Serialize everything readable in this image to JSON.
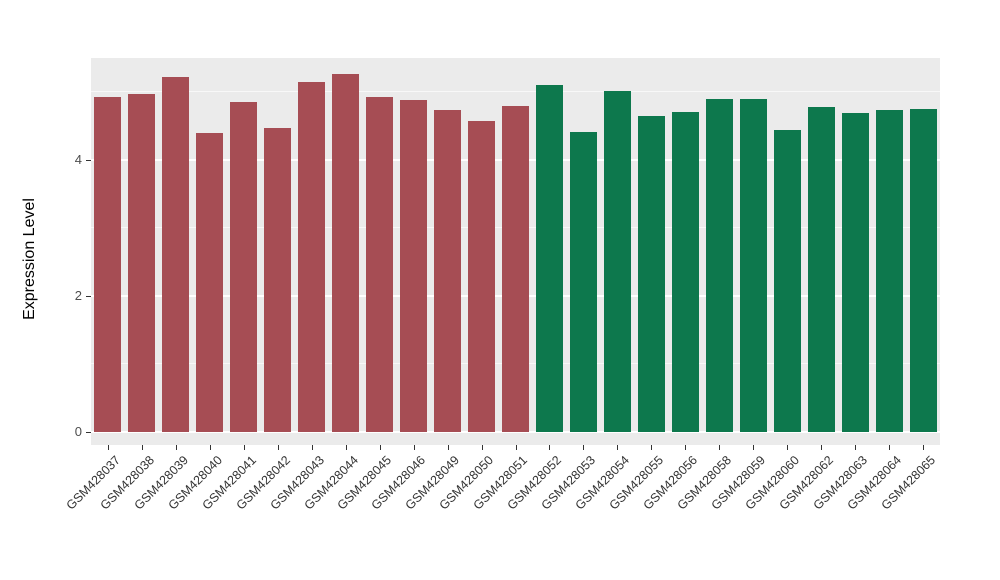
{
  "chart_data": {
    "type": "bar",
    "title": "",
    "xlabel": "",
    "ylabel": "Expression Level",
    "ylim": [
      0,
      5.5
    ],
    "yticks": [
      0,
      2,
      4
    ],
    "minor_ticks": [
      1,
      3,
      5
    ],
    "grid": true,
    "legend": "none",
    "panel_background": "#EBEBEB",
    "categories": [
      "GSM428037",
      "GSM428038",
      "GSM428039",
      "GSM428040",
      "GSM428041",
      "GSM428042",
      "GSM428043",
      "GSM428044",
      "GSM428045",
      "GSM428046",
      "GSM428049",
      "GSM428050",
      "GSM428051",
      "GSM428052",
      "GSM428053",
      "GSM428054",
      "GSM428055",
      "GSM428056",
      "GSM428058",
      "GSM428059",
      "GSM428060",
      "GSM428062",
      "GSM428063",
      "GSM428064",
      "GSM428065"
    ],
    "values": [
      4.92,
      4.97,
      5.22,
      4.4,
      4.85,
      4.47,
      5.15,
      5.27,
      4.93,
      4.88,
      4.73,
      4.57,
      4.79,
      5.11,
      4.41,
      5.01,
      4.65,
      4.7,
      4.9,
      4.89,
      4.44,
      4.78,
      4.69,
      4.74,
      4.75
    ],
    "groups": [
      "group1",
      "group1",
      "group1",
      "group1",
      "group1",
      "group1",
      "group1",
      "group1",
      "group1",
      "group1",
      "group1",
      "group1",
      "group1",
      "group2",
      "group2",
      "group2",
      "group2",
      "group2",
      "group2",
      "group2",
      "group2",
      "group2",
      "group2",
      "group2",
      "group2"
    ],
    "group_colors": {
      "group1": "#A64D54",
      "group2": "#0D784D"
    }
  }
}
